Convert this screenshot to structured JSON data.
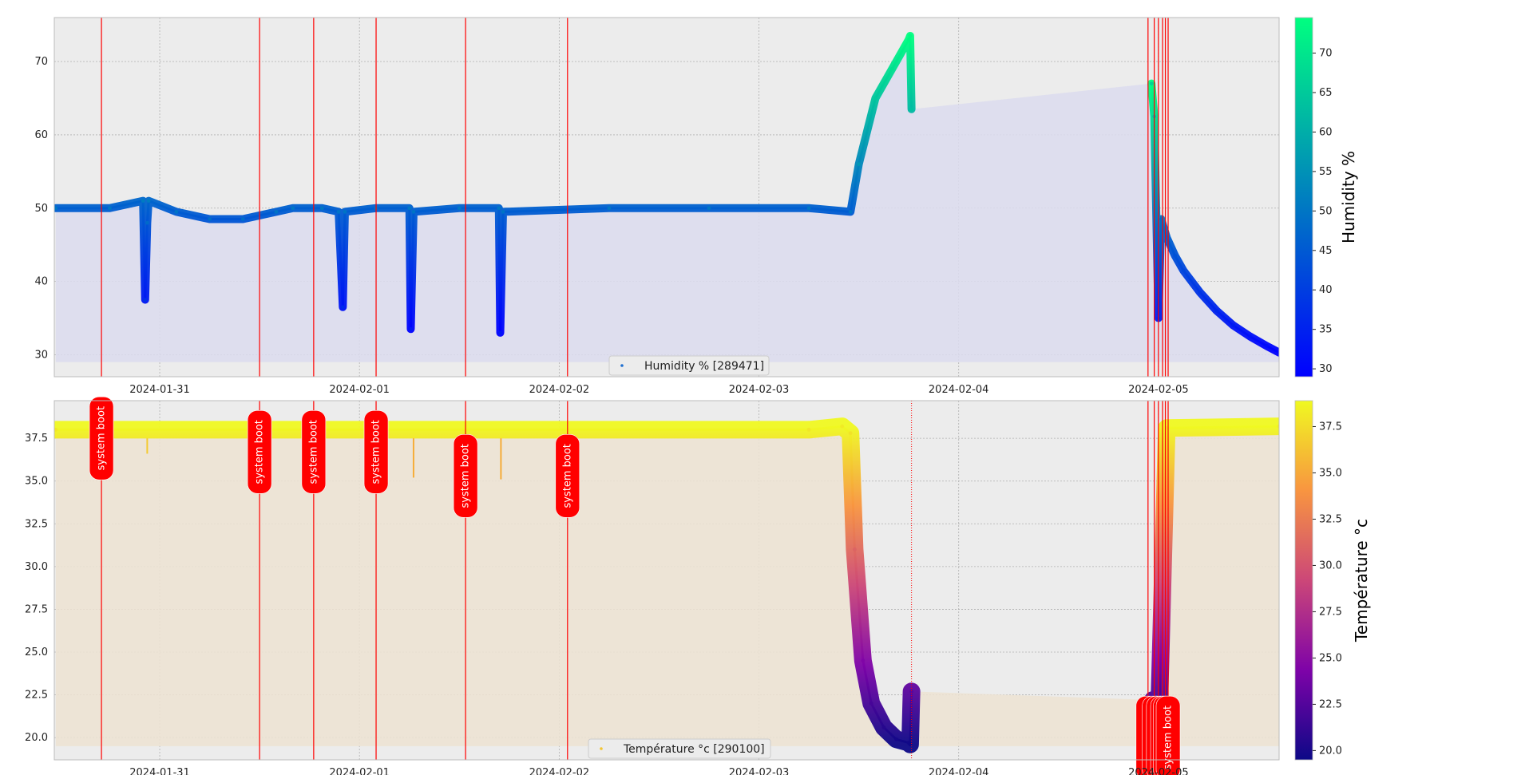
{
  "chart_data": [
    {
      "type": "scatter",
      "title": "",
      "xlabel": "",
      "ylabel": "",
      "x_ticks": [
        "2024-01-31",
        "2024-02-01",
        "2024-02-02",
        "2024-02-03",
        "2024-02-04",
        "2024-02-05"
      ],
      "xlim": [
        "2024-01-30 11:20",
        "2024-02-05 14:30"
      ],
      "y_ticks": [
        30,
        40,
        50,
        60,
        70
      ],
      "ylim": [
        27,
        76
      ],
      "grid": true,
      "legend": {
        "label": "Humidity % [289471]",
        "placement": "lower-center"
      },
      "colorbar": {
        "label": "Humidity %",
        "cmap": "winter",
        "ticks": [
          30,
          35,
          40,
          45,
          50,
          55,
          60,
          65,
          70
        ],
        "range": [
          29,
          74.5
        ]
      },
      "fill_baseline": 29,
      "series": [
        {
          "name": "Humidity % [289471]",
          "x": [
            "2024-01-30 11:30",
            "2024-01-30 18:00",
            "2024-01-30 22:00",
            "2024-01-30 22:15",
            "2024-01-30 22:30",
            "2024-01-30 22:40",
            "2024-01-31 02:00",
            "2024-01-31 06:00",
            "2024-01-31 10:00",
            "2024-01-31 14:00",
            "2024-01-31 16:00",
            "2024-01-31 19:30",
            "2024-01-31 21:30",
            "2024-01-31 22:00",
            "2024-01-31 22:15",
            "2024-02-01 02:00",
            "2024-02-01 06:00",
            "2024-02-01 06:10",
            "2024-02-01 06:30",
            "2024-02-01 12:00",
            "2024-02-01 16:45",
            "2024-02-01 16:55",
            "2024-02-01 17:15",
            "2024-02-02 06:00",
            "2024-02-02 18:00",
            "2024-02-03 06:00",
            "2024-02-03 11:00",
            "2024-02-03 12:00",
            "2024-02-03 14:00",
            "2024-02-03 16:00",
            "2024-02-03 18:00",
            "2024-02-03 18:10",
            "2024-02-03 18:20"
          ],
          "y": [
            50,
            50,
            51,
            37.5,
            48,
            51,
            49.5,
            48.5,
            48.5,
            49.5,
            50,
            50,
            49.5,
            36.5,
            49.5,
            50,
            50,
            33.5,
            49.5,
            50,
            50,
            33,
            49.5,
            50,
            50,
            50,
            49.5,
            56,
            65,
            69,
            73,
            73.5,
            63.5
          ]
        },
        {
          "name": "Humidity % [289471] (after gap)",
          "x": [
            "2024-02-04 23:10",
            "2024-02-04 23:30",
            "2024-02-05 00:00",
            "2024-02-05 00:20",
            "2024-02-05 01:00",
            "2024-02-05 02:00",
            "2024-02-05 03:00",
            "2024-02-05 05:00",
            "2024-02-05 07:00",
            "2024-02-05 09:00",
            "2024-02-05 11:00",
            "2024-02-05 13:00",
            "2024-02-05 14:30"
          ],
          "y": [
            67,
            62.5,
            35,
            48.5,
            46,
            43.5,
            41.5,
            38.5,
            36,
            34,
            32.5,
            31.2,
            30.3
          ]
        }
      ],
      "annotations": {
        "system_boot_lines": [
          "2024-01-30 17:00",
          "2024-01-31 12:00",
          "2024-01-31 18:30",
          "2024-02-01 02:00",
          "2024-02-01 12:45",
          "2024-02-02 01:00",
          "2024-02-04 22:45",
          "2024-02-04 23:30",
          "2024-02-05 00:00",
          "2024-02-05 00:30",
          "2024-02-05 00:50",
          "2024-02-05 01:10"
        ]
      }
    },
    {
      "type": "scatter",
      "title": "",
      "xlabel": "",
      "ylabel": "",
      "x_ticks": [
        "2024-01-31",
        "2024-02-01",
        "2024-02-02",
        "2024-02-03",
        "2024-02-04",
        "2024-02-05"
      ],
      "xlim": [
        "2024-01-30 11:20",
        "2024-02-05 14:30"
      ],
      "y_ticks": [
        20.0,
        22.5,
        25.0,
        27.5,
        30.0,
        32.5,
        35.0,
        37.5
      ],
      "ylim": [
        18.7,
        39.7
      ],
      "grid": true,
      "legend": {
        "label": "Température °c [290100]",
        "placement": "lower-center"
      },
      "colorbar": {
        "label": "Température °c",
        "cmap": "plasma",
        "ticks": [
          20.0,
          22.5,
          25.0,
          27.5,
          30.0,
          32.5,
          35.0,
          37.5
        ],
        "range": [
          19.5,
          38.9
        ]
      },
      "fill_baseline": 19.5,
      "series": [
        {
          "name": "Température °c [290100]",
          "x": [
            "2024-01-30 11:30",
            "2024-02-03 06:00",
            "2024-02-03 10:00",
            "2024-02-03 11:00",
            "2024-02-03 11:30",
            "2024-02-03 12:30",
            "2024-02-03 13:30",
            "2024-02-03 15:00",
            "2024-02-03 16:30",
            "2024-02-03 18:00",
            "2024-02-03 18:10",
            "2024-02-03 18:20"
          ],
          "y": [
            38,
            38,
            38.2,
            37.8,
            31,
            24.5,
            22,
            20.6,
            19.9,
            19.7,
            19.6,
            22.7
          ]
        },
        {
          "name": "Température °c [290100] (after gap)",
          "x": [
            "2024-02-04 23:20",
            "2024-02-04 23:40",
            "2024-02-05 00:00",
            "2024-02-05 01:00",
            "2024-02-05 14:30"
          ],
          "y": [
            22.2,
            21.5,
            20,
            38.1,
            38.2
          ]
        }
      ],
      "dips": [
        {
          "x": "2024-01-30 22:30",
          "y": 36.6
        },
        {
          "x": "2024-02-01 06:30",
          "y": 35.2
        },
        {
          "x": "2024-02-01 17:00",
          "y": 35.1
        }
      ],
      "annotations": {
        "system_boot_label": "system boot",
        "system_boot_lines": [
          "2024-01-30 17:00",
          "2024-01-31 12:00",
          "2024-01-31 18:30",
          "2024-02-01 02:00",
          "2024-02-01 12:45",
          "2024-02-02 01:00",
          "2024-02-04 22:45",
          "2024-02-04 23:30",
          "2024-02-05 00:00",
          "2024-02-05 00:30",
          "2024-02-05 00:50",
          "2024-02-05 01:10"
        ],
        "boot_label_y": [
          37.5,
          36.7,
          36.7,
          36.7,
          35.3,
          35.3,
          20,
          20,
          20,
          20,
          20,
          20
        ]
      }
    }
  ]
}
